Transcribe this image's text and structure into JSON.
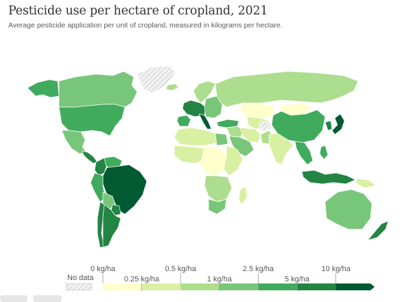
{
  "header": {
    "title": "Pesticide use per hectare of cropland, 2021",
    "subtitle": "Average pesticide application per unit of cropland, measured in kilograms per hectare."
  },
  "palette": {
    "no_data": "#f2f2f2",
    "c0": "#ffffcc",
    "c1": "#d9f0a3",
    "c2": "#addd8e",
    "c3": "#78c679",
    "c4": "#41ab5d",
    "c5": "#238443",
    "c6": "#005a32",
    "border": "#ffffff"
  },
  "legend": {
    "no_data_label": "No data",
    "top_labels": [
      "0 kg/ha",
      "0.5 kg/ha",
      "2.5 kg/ha",
      "10 kg/ha"
    ],
    "bottom_labels": [
      "0.25 kg/ha",
      "1 kg/ha",
      "5 kg/ha"
    ],
    "bins": [
      "c0",
      "c1",
      "c2",
      "c3",
      "c4",
      "c5",
      "c6"
    ]
  },
  "regions": [
    {
      "name": "alaska",
      "bin": "c4"
    },
    {
      "name": "canada",
      "bin": "c3"
    },
    {
      "name": "greenland",
      "bin": "no_data"
    },
    {
      "name": "united-states",
      "bin": "c4"
    },
    {
      "name": "mexico",
      "bin": "c3"
    },
    {
      "name": "central-america",
      "bin": "c5"
    },
    {
      "name": "colombia",
      "bin": "c5"
    },
    {
      "name": "venezuela",
      "bin": "c4"
    },
    {
      "name": "brazil",
      "bin": "c6"
    },
    {
      "name": "peru",
      "bin": "c4"
    },
    {
      "name": "bolivia",
      "bin": "c3"
    },
    {
      "name": "paraguay",
      "bin": "c5"
    },
    {
      "name": "argentina",
      "bin": "c5"
    },
    {
      "name": "chile",
      "bin": "c5"
    },
    {
      "name": "iceland",
      "bin": "c2"
    },
    {
      "name": "scandinavia",
      "bin": "c2"
    },
    {
      "name": "western-europe",
      "bin": "c5"
    },
    {
      "name": "iberia",
      "bin": "c4"
    },
    {
      "name": "italy",
      "bin": "c6"
    },
    {
      "name": "eastern-europe",
      "bin": "c3"
    },
    {
      "name": "russia",
      "bin": "c2"
    },
    {
      "name": "turkey",
      "bin": "c4"
    },
    {
      "name": "kazakhstan",
      "bin": "c0"
    },
    {
      "name": "central-asia",
      "bin": "c1"
    },
    {
      "name": "mongolia",
      "bin": "c0"
    },
    {
      "name": "china",
      "bin": "c4"
    },
    {
      "name": "korea",
      "bin": "c5"
    },
    {
      "name": "japan",
      "bin": "c6"
    },
    {
      "name": "middle-east",
      "bin": "c2"
    },
    {
      "name": "arabia",
      "bin": "c3"
    },
    {
      "name": "iran",
      "bin": "c1"
    },
    {
      "name": "afghanistan",
      "bin": "no_data"
    },
    {
      "name": "pakistan",
      "bin": "c2"
    },
    {
      "name": "india",
      "bin": "c1"
    },
    {
      "name": "southeast-asia",
      "bin": "c4"
    },
    {
      "name": "philippines",
      "bin": "c4"
    },
    {
      "name": "indonesia",
      "bin": "c5"
    },
    {
      "name": "papua-new-guinea",
      "bin": "c1"
    },
    {
      "name": "north-africa",
      "bin": "c1"
    },
    {
      "name": "egypt",
      "bin": "c3"
    },
    {
      "name": "west-africa",
      "bin": "c1"
    },
    {
      "name": "central-africa",
      "bin": "c0"
    },
    {
      "name": "east-africa",
      "bin": "c1"
    },
    {
      "name": "southern-africa",
      "bin": "c2"
    },
    {
      "name": "south-africa",
      "bin": "c3"
    },
    {
      "name": "madagascar",
      "bin": "c1"
    },
    {
      "name": "australia",
      "bin": "c3"
    },
    {
      "name": "new-zealand",
      "bin": "c5"
    }
  ]
}
